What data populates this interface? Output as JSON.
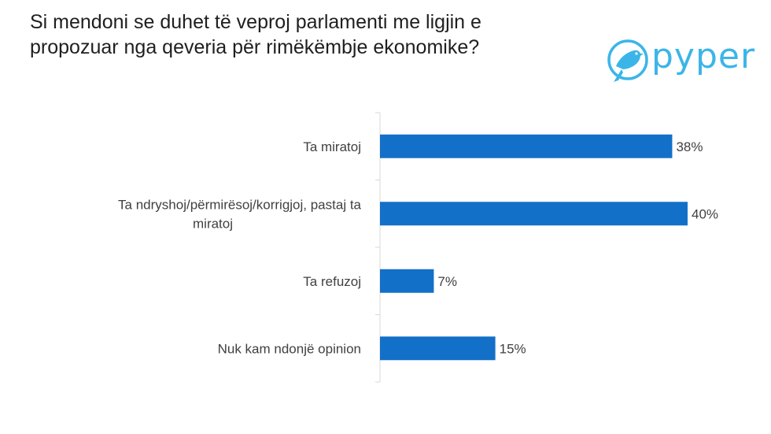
{
  "title": {
    "line1": "Si mendoni se duhet të veproj parlamenti me ligjin e",
    "line2": "propozuar nga qeveria për rimëkëmbje ekonomike?"
  },
  "logo": {
    "text": "pyper",
    "color": "#3bb5e8"
  },
  "chart_data": {
    "type": "bar",
    "orientation": "horizontal",
    "categories": [
      [
        "Ta miratoj"
      ],
      [
        "Ta ndryshoj/përmirësoj/korrigjoj, pastaj ta",
        "miratoj"
      ],
      [
        "Ta refuzoj"
      ],
      [
        "Nuk kam ndonjë opinion"
      ]
    ],
    "values": [
      38,
      40,
      7,
      15
    ],
    "value_labels": [
      "38%",
      "40%",
      "7%",
      "15%"
    ],
    "bar_color": "#1370c8",
    "xlim": [
      0,
      40
    ],
    "grid": false,
    "legend": "none"
  }
}
